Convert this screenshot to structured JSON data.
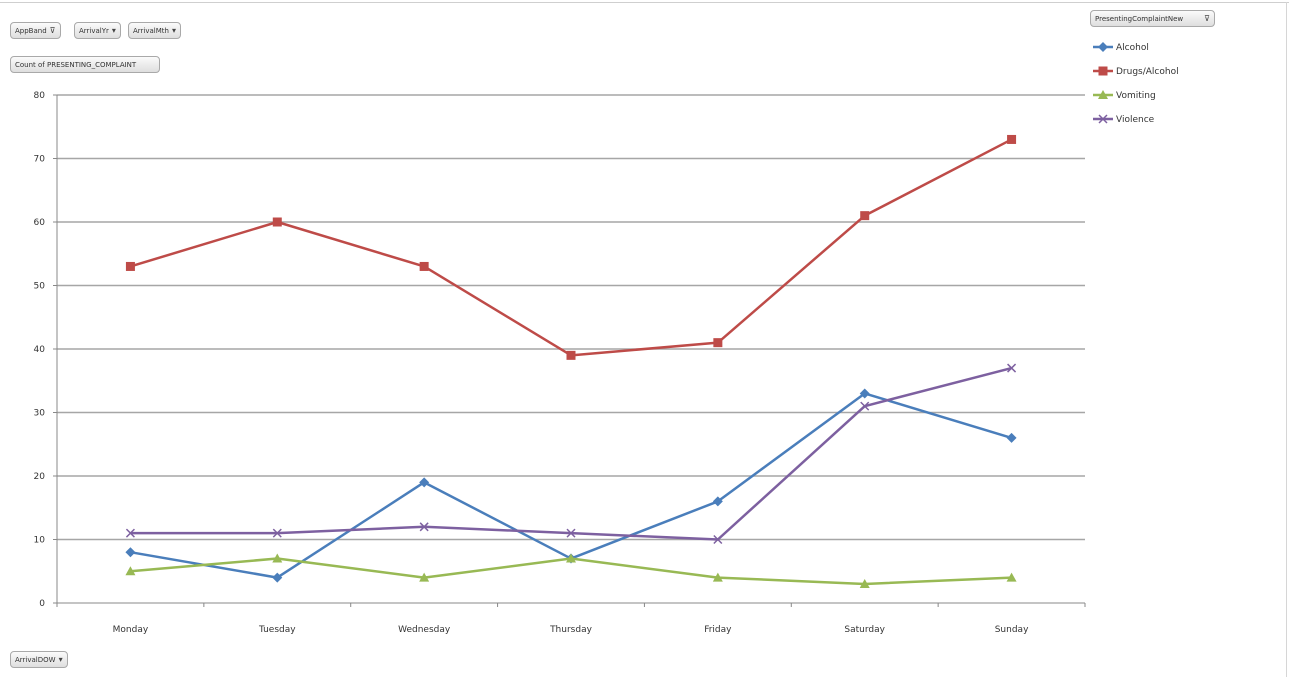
{
  "pivot": {
    "filter_buttons": [
      {
        "label": "AppBand",
        "icon": "filter-icon"
      },
      {
        "label": "ArrivalYr",
        "icon": "dropdown-icon"
      },
      {
        "label": "ArrivalMth",
        "icon": "dropdown-icon"
      }
    ],
    "value_field": "Count of PRESENTING_COMPLAINT",
    "axis_field": {
      "label": "ArrivalDOW",
      "icon": "dropdown-icon"
    },
    "legend_field": {
      "label": "PresentingComplaintNew",
      "icon": "filter-icon"
    }
  },
  "colors": {
    "Alcohol": "#4a7ebb",
    "Drugs/Alcohol": "#be4b48",
    "Vomiting": "#98b954",
    "Violence": "#7d60a0",
    "grid": "#a6a6a6"
  },
  "chart_data": {
    "type": "line",
    "categories": [
      "Monday",
      "Tuesday",
      "Wednesday",
      "Thursday",
      "Friday",
      "Saturday",
      "Sunday"
    ],
    "ylim": [
      0,
      80
    ],
    "yticks": [
      0,
      10,
      20,
      30,
      40,
      50,
      60,
      70,
      80
    ],
    "grid": true,
    "legend_position": "top-right",
    "series": [
      {
        "name": "Alcohol",
        "marker": "diamond",
        "values": [
          8,
          4,
          19,
          7,
          16,
          33,
          26
        ]
      },
      {
        "name": "Drugs/Alcohol",
        "marker": "square",
        "values": [
          53,
          60,
          53,
          39,
          41,
          61,
          73
        ]
      },
      {
        "name": "Vomiting",
        "marker": "triangle",
        "values": [
          5,
          7,
          4,
          7,
          4,
          3,
          4
        ]
      },
      {
        "name": "Violence",
        "marker": "x",
        "values": [
          11,
          11,
          12,
          11,
          10,
          31,
          37
        ]
      }
    ]
  }
}
